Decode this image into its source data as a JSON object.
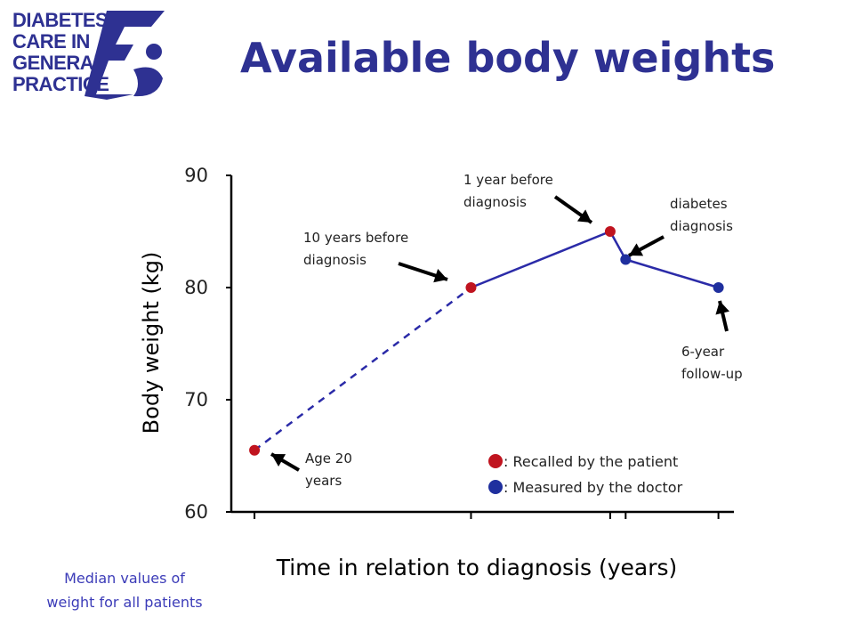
{
  "logo": {
    "lines": [
      "DIABETES",
      "CARE IN",
      "GENERAL",
      "PRACTICE"
    ],
    "color": "#2e3192"
  },
  "title": "Available body weights",
  "note": {
    "line1": "Median values of",
    "line2": "weight for all patients"
  },
  "colors": {
    "recalled": "#c0141f",
    "measured": "#1f2f9e",
    "line": "#2b2ba8",
    "axis": "#000000",
    "title": "#2e3192"
  },
  "chart_data": {
    "type": "line",
    "title": "Available body weights",
    "ylabel": "Body weight (kg)",
    "xlabel": "Time in relation to diagnosis (years)",
    "ylim": [
      60,
      90
    ],
    "yticks": [
      60,
      70,
      80,
      90
    ],
    "x_unit_note": "x values in years relative to diagnosis; ticks unlabeled",
    "x_ticks": [
      -24,
      -10,
      -1,
      0,
      6
    ],
    "xlim": [
      -25.5,
      7
    ],
    "points": [
      {
        "x": -24,
        "y": 65.5,
        "source": "recalled",
        "label": [
          "Age 20",
          "years"
        ]
      },
      {
        "x": -10,
        "y": 80,
        "source": "recalled",
        "label": [
          "10 years before",
          "diagnosis"
        ]
      },
      {
        "x": -1,
        "y": 85,
        "source": "recalled",
        "label": [
          "1 year before",
          "diagnosis"
        ]
      },
      {
        "x": 0,
        "y": 82.5,
        "source": "measured",
        "label": [
          "diabetes",
          "diagnosis"
        ]
      },
      {
        "x": 6,
        "y": 80,
        "source": "measured",
        "label": [
          "6-year",
          "follow-up"
        ]
      }
    ],
    "segments": [
      {
        "from": 0,
        "to": 1,
        "style": "dashed"
      },
      {
        "from": 1,
        "to": 2,
        "style": "solid"
      },
      {
        "from": 2,
        "to": 3,
        "style": "solid"
      },
      {
        "from": 3,
        "to": 4,
        "style": "solid"
      }
    ],
    "legend": {
      "placement": "bottom-right",
      "entries": [
        {
          "source": "recalled",
          "text": ": Recalled by the patient"
        },
        {
          "source": "measured",
          "text": ": Measured by the doctor"
        }
      ]
    }
  }
}
